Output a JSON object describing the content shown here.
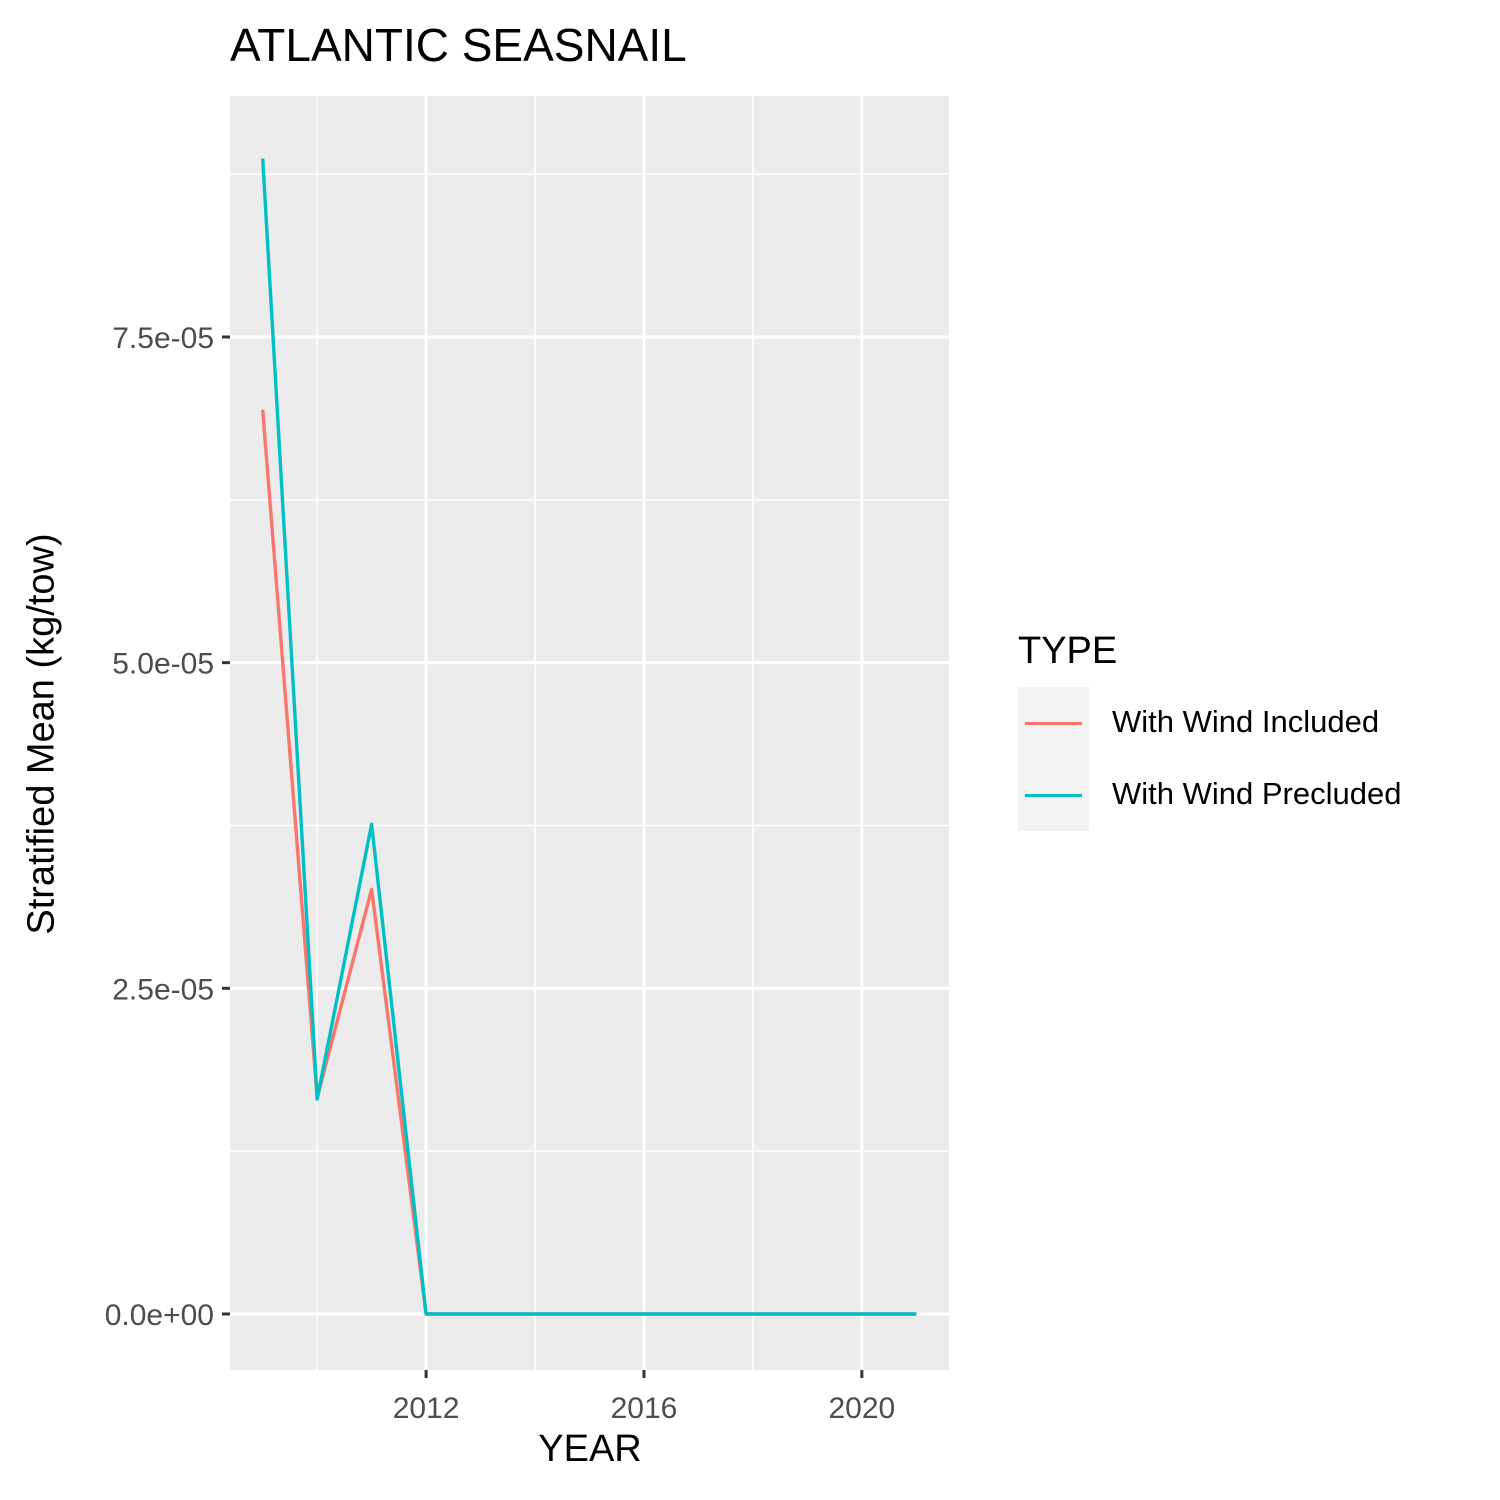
{
  "chart_data": {
    "type": "line",
    "title": "ATLANTIC SEASNAIL",
    "xlabel": "YEAR",
    "ylabel": "Stratified Mean (kg/tow)",
    "x": [
      2009,
      2010,
      2011,
      2012,
      2013,
      2014,
      2015,
      2016,
      2017,
      2018,
      2019,
      2020,
      2021
    ],
    "xlim": [
      2008.4,
      2021.6
    ],
    "ylim": [
      -4.3e-06,
      9.35e-05
    ],
    "xticks": [
      2012,
      2016,
      2020
    ],
    "xtick_labels": [
      "2012",
      "2016",
      "2020"
    ],
    "yticks": [
      0,
      2.5e-05,
      5e-05,
      7.5e-05
    ],
    "ytick_labels": [
      "0.0e+00",
      "2.5e-05",
      "5.0e-05",
      "7.5e-05"
    ],
    "grid": true,
    "legend": {
      "title": "TYPE",
      "position": "right"
    },
    "series": [
      {
        "name": "With Wind Included",
        "color": "#F8766D",
        "values": [
          6.94e-05,
          1.66e-05,
          3.26e-05,
          0,
          0,
          0,
          0,
          0,
          0,
          0,
          0,
          0,
          0
        ]
      },
      {
        "name": "With Wind Precluded",
        "color": "#00BFC4",
        "values": [
          8.87e-05,
          1.65e-05,
          3.76e-05,
          0,
          0,
          0,
          0,
          0,
          0,
          0,
          0,
          0,
          0
        ]
      }
    ]
  }
}
